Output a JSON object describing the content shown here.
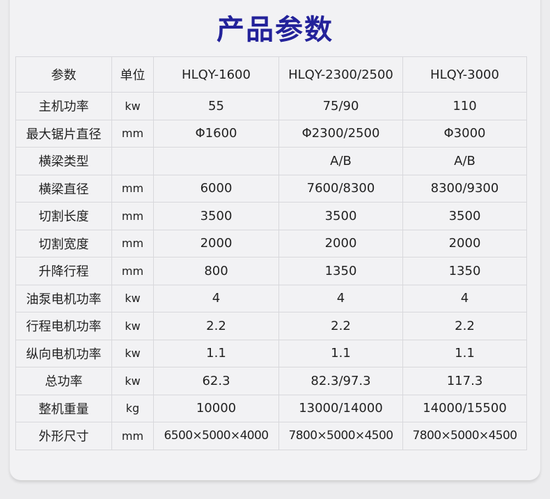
{
  "title": "产品参数",
  "colors": {
    "title": "#23229a",
    "border": "#d8d8dc"
  },
  "table": {
    "headers": [
      "参数",
      "单位",
      "HLQY-1600",
      "HLQY-2300/2500",
      "HLQY-3000"
    ],
    "rows": [
      [
        "主机功率",
        "kw",
        "55",
        "75/90",
        "110"
      ],
      [
        "最大锯片直径",
        "mm",
        "Φ1600",
        "Φ2300/2500",
        "Φ3000"
      ],
      [
        "横梁类型",
        "",
        "",
        "A/B",
        "A/B"
      ],
      [
        "横梁直径",
        "mm",
        "6000",
        "7600/8300",
        "8300/9300"
      ],
      [
        "切割长度",
        "mm",
        "3500",
        "3500",
        "3500"
      ],
      [
        "切割宽度",
        "mm",
        "2000",
        "2000",
        "2000"
      ],
      [
        "升降行程",
        "mm",
        "800",
        "1350",
        "1350"
      ],
      [
        "油泵电机功率",
        "kw",
        "4",
        "4",
        "4"
      ],
      [
        "行程电机功率",
        "kw",
        "2.2",
        "2.2",
        "2.2"
      ],
      [
        "纵向电机功率",
        "kw",
        "1.1",
        "1.1",
        "1.1"
      ],
      [
        "总功率",
        "kw",
        "62.3",
        "82.3/97.3",
        "117.3"
      ],
      [
        "整机重量",
        "kg",
        "10000",
        "13000/14000",
        "14000/15500"
      ],
      [
        "外形尺寸",
        "mm",
        "6500×5000×4000",
        "7800×5000×4500",
        "7800×5000×4500"
      ]
    ]
  }
}
